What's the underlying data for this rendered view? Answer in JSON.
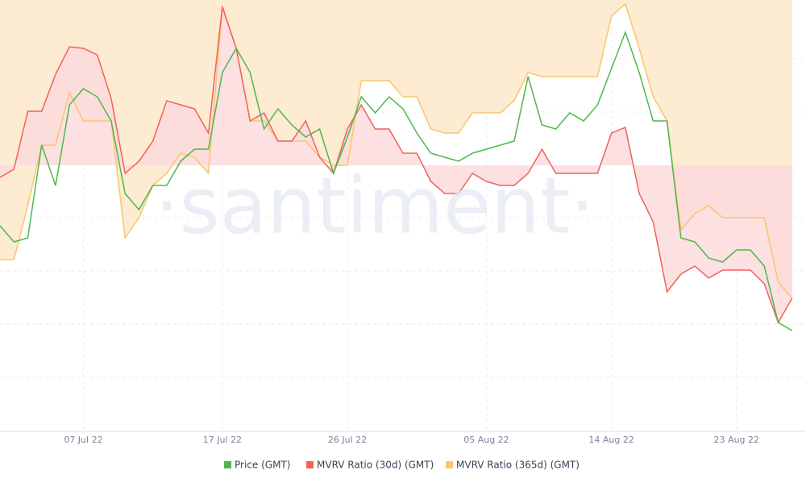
{
  "chart_data": {
    "type": "line",
    "watermark": "·santiment·",
    "x": [
      "2022-07-01",
      "2022-07-02",
      "2022-07-03",
      "2022-07-04",
      "2022-07-05",
      "2022-07-06",
      "2022-07-07",
      "2022-07-08",
      "2022-07-09",
      "2022-07-10",
      "2022-07-11",
      "2022-07-12",
      "2022-07-13",
      "2022-07-14",
      "2022-07-15",
      "2022-07-16",
      "2022-07-17",
      "2022-07-18",
      "2022-07-19",
      "2022-07-20",
      "2022-07-21",
      "2022-07-22",
      "2022-07-23",
      "2022-07-24",
      "2022-07-25",
      "2022-07-26",
      "2022-07-27",
      "2022-07-28",
      "2022-07-29",
      "2022-07-30",
      "2022-07-31",
      "2022-08-01",
      "2022-08-02",
      "2022-08-03",
      "2022-08-04",
      "2022-08-05",
      "2022-08-06",
      "2022-08-07",
      "2022-08-08",
      "2022-08-09",
      "2022-08-10",
      "2022-08-11",
      "2022-08-12",
      "2022-08-13",
      "2022-08-14",
      "2022-08-15",
      "2022-08-16",
      "2022-08-17",
      "2022-08-18",
      "2022-08-19",
      "2022-08-20",
      "2022-08-21",
      "2022-08-22",
      "2022-08-23",
      "2022-08-24",
      "2022-08-25",
      "2022-08-26",
      "2022-08-27"
    ],
    "xlim": [
      "2022-07-01",
      "2022-08-28"
    ],
    "xticks": [
      {
        "value": "2022-07-07",
        "label": "07 Jul 22"
      },
      {
        "value": "2022-07-17",
        "label": "17 Jul 22"
      },
      {
        "value": "2022-07-26",
        "label": "26 Jul 22"
      },
      {
        "value": "2022-08-05",
        "label": "05 Aug 22"
      },
      {
        "value": "2022-08-14",
        "label": "14 Aug 22"
      },
      {
        "value": "2022-08-23",
        "label": "23 Aug 22"
      }
    ],
    "ylim": [
      0,
      535
    ],
    "series": [
      {
        "name": "Price (GMT)",
        "color": "#4db84a",
        "values": [
          255,
          235,
          240,
          355,
          305,
          405,
          425,
          415,
          385,
          295,
          275,
          305,
          305,
          335,
          350,
          350,
          445,
          475,
          445,
          375,
          400,
          380,
          365,
          375,
          320,
          365,
          415,
          395,
          415,
          400,
          370,
          345,
          340,
          335,
          345,
          350,
          355,
          360,
          440,
          380,
          375,
          395,
          385,
          405,
          450,
          495,
          445,
          385,
          385,
          240,
          235,
          215,
          210,
          225,
          225,
          205,
          135,
          125
        ]
      },
      {
        "name": "MVRV Ratio (30d) (GMT)",
        "color": "#f0625a",
        "values": [
          315,
          325,
          397,
          397,
          443,
          477,
          475,
          467,
          413,
          320,
          335,
          360,
          410,
          405,
          400,
          370,
          527,
          475,
          385,
          395,
          360,
          360,
          385,
          340,
          320,
          375,
          405,
          375,
          375,
          345,
          345,
          310,
          295,
          295,
          320,
          310,
          305,
          305,
          320,
          350,
          320,
          320,
          320,
          320,
          370,
          377,
          295,
          260,
          173,
          195,
          205,
          190,
          200,
          200,
          200,
          183,
          135,
          165
        ]
      },
      {
        "name": "MVRV Ratio (365d) (GMT)",
        "color": "#f7c76a",
        "values": [
          213,
          213,
          280,
          355,
          355,
          420,
          385,
          385,
          385,
          240,
          265,
          305,
          320,
          345,
          340,
          320,
          525,
          475,
          385,
          385,
          360,
          360,
          360,
          340,
          330,
          330,
          435,
          435,
          435,
          415,
          415,
          375,
          370,
          370,
          395,
          395,
          395,
          410,
          445,
          440,
          440,
          440,
          440,
          440,
          515,
          530,
          475,
          415,
          385,
          250,
          270,
          280,
          265,
          265,
          265,
          265,
          185,
          165
        ]
      }
    ]
  }
}
